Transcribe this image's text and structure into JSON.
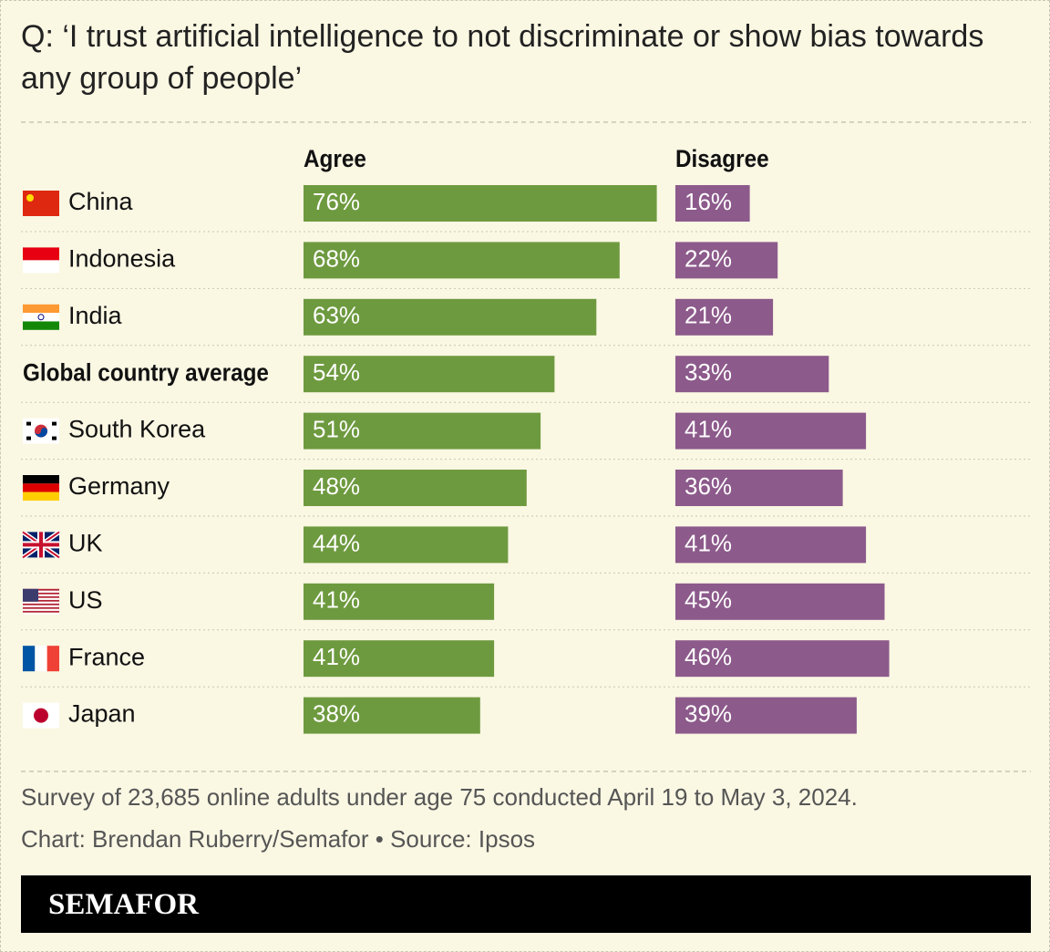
{
  "chart_data": {
    "type": "bar",
    "title": "Q: ‘I trust artificial intelligence to not discriminate or show bias towards any group of people’",
    "categories": [
      "China",
      "Indonesia",
      "India",
      "Global country average",
      "South Korea",
      "Germany",
      "UK",
      "US",
      "France",
      "Japan"
    ],
    "series": [
      {
        "name": "Agree",
        "color": "#6e9a3f",
        "values": [
          76,
          68,
          63,
          54,
          51,
          48,
          44,
          41,
          41,
          38
        ],
        "value_labels": [
          "76%",
          "68%",
          "63%",
          "54%",
          "51%",
          "48%",
          "44%",
          "41%",
          "41%",
          "38%"
        ]
      },
      {
        "name": "Disagree",
        "color": "#8c5a8b",
        "values": [
          16,
          22,
          21,
          33,
          41,
          36,
          41,
          45,
          46,
          39
        ],
        "value_labels": [
          "16%",
          "22%",
          "21%",
          "33%",
          "41%",
          "36%",
          "41%",
          "45%",
          "46%",
          "39%"
        ]
      }
    ],
    "note": "Survey of 23,685 online adults under age 75 conducted April 19 to May 3, 2024.",
    "credit": "Chart: Brendan Ruberry/Semafor • Source: Ipsos",
    "brand": "SEMAFOR"
  }
}
